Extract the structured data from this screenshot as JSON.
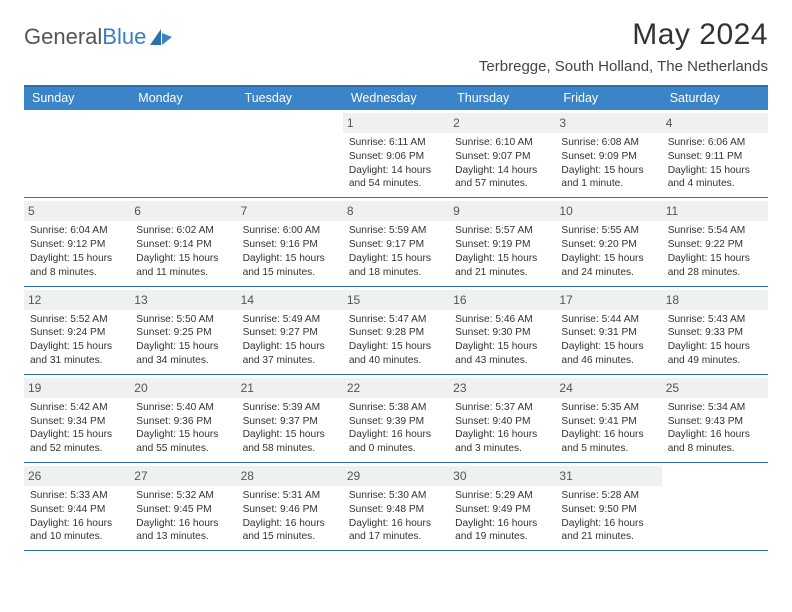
{
  "brand": {
    "part1": "General",
    "part2": "Blue"
  },
  "title": "May 2024",
  "location": "Terbregge, South Holland, The Netherlands",
  "colors": {
    "header_bg": "#3a84c7",
    "border": "#2e6fb0",
    "daynum_bg": "#eef0f1",
    "text": "#333333",
    "title": "#333333"
  },
  "daynames": [
    "Sunday",
    "Monday",
    "Tuesday",
    "Wednesday",
    "Thursday",
    "Friday",
    "Saturday"
  ],
  "weeks": [
    [
      null,
      null,
      null,
      {
        "n": "1",
        "sr": "Sunrise: 6:11 AM",
        "ss": "Sunset: 9:06 PM",
        "d1": "Daylight: 14 hours",
        "d2": "and 54 minutes."
      },
      {
        "n": "2",
        "sr": "Sunrise: 6:10 AM",
        "ss": "Sunset: 9:07 PM",
        "d1": "Daylight: 14 hours",
        "d2": "and 57 minutes."
      },
      {
        "n": "3",
        "sr": "Sunrise: 6:08 AM",
        "ss": "Sunset: 9:09 PM",
        "d1": "Daylight: 15 hours",
        "d2": "and 1 minute."
      },
      {
        "n": "4",
        "sr": "Sunrise: 6:06 AM",
        "ss": "Sunset: 9:11 PM",
        "d1": "Daylight: 15 hours",
        "d2": "and 4 minutes."
      }
    ],
    [
      {
        "n": "5",
        "sr": "Sunrise: 6:04 AM",
        "ss": "Sunset: 9:12 PM",
        "d1": "Daylight: 15 hours",
        "d2": "and 8 minutes."
      },
      {
        "n": "6",
        "sr": "Sunrise: 6:02 AM",
        "ss": "Sunset: 9:14 PM",
        "d1": "Daylight: 15 hours",
        "d2": "and 11 minutes."
      },
      {
        "n": "7",
        "sr": "Sunrise: 6:00 AM",
        "ss": "Sunset: 9:16 PM",
        "d1": "Daylight: 15 hours",
        "d2": "and 15 minutes."
      },
      {
        "n": "8",
        "sr": "Sunrise: 5:59 AM",
        "ss": "Sunset: 9:17 PM",
        "d1": "Daylight: 15 hours",
        "d2": "and 18 minutes."
      },
      {
        "n": "9",
        "sr": "Sunrise: 5:57 AM",
        "ss": "Sunset: 9:19 PM",
        "d1": "Daylight: 15 hours",
        "d2": "and 21 minutes."
      },
      {
        "n": "10",
        "sr": "Sunrise: 5:55 AM",
        "ss": "Sunset: 9:20 PM",
        "d1": "Daylight: 15 hours",
        "d2": "and 24 minutes."
      },
      {
        "n": "11",
        "sr": "Sunrise: 5:54 AM",
        "ss": "Sunset: 9:22 PM",
        "d1": "Daylight: 15 hours",
        "d2": "and 28 minutes."
      }
    ],
    [
      {
        "n": "12",
        "sr": "Sunrise: 5:52 AM",
        "ss": "Sunset: 9:24 PM",
        "d1": "Daylight: 15 hours",
        "d2": "and 31 minutes."
      },
      {
        "n": "13",
        "sr": "Sunrise: 5:50 AM",
        "ss": "Sunset: 9:25 PM",
        "d1": "Daylight: 15 hours",
        "d2": "and 34 minutes."
      },
      {
        "n": "14",
        "sr": "Sunrise: 5:49 AM",
        "ss": "Sunset: 9:27 PM",
        "d1": "Daylight: 15 hours",
        "d2": "and 37 minutes."
      },
      {
        "n": "15",
        "sr": "Sunrise: 5:47 AM",
        "ss": "Sunset: 9:28 PM",
        "d1": "Daylight: 15 hours",
        "d2": "and 40 minutes."
      },
      {
        "n": "16",
        "sr": "Sunrise: 5:46 AM",
        "ss": "Sunset: 9:30 PM",
        "d1": "Daylight: 15 hours",
        "d2": "and 43 minutes."
      },
      {
        "n": "17",
        "sr": "Sunrise: 5:44 AM",
        "ss": "Sunset: 9:31 PM",
        "d1": "Daylight: 15 hours",
        "d2": "and 46 minutes."
      },
      {
        "n": "18",
        "sr": "Sunrise: 5:43 AM",
        "ss": "Sunset: 9:33 PM",
        "d1": "Daylight: 15 hours",
        "d2": "and 49 minutes."
      }
    ],
    [
      {
        "n": "19",
        "sr": "Sunrise: 5:42 AM",
        "ss": "Sunset: 9:34 PM",
        "d1": "Daylight: 15 hours",
        "d2": "and 52 minutes."
      },
      {
        "n": "20",
        "sr": "Sunrise: 5:40 AM",
        "ss": "Sunset: 9:36 PM",
        "d1": "Daylight: 15 hours",
        "d2": "and 55 minutes."
      },
      {
        "n": "21",
        "sr": "Sunrise: 5:39 AM",
        "ss": "Sunset: 9:37 PM",
        "d1": "Daylight: 15 hours",
        "d2": "and 58 minutes."
      },
      {
        "n": "22",
        "sr": "Sunrise: 5:38 AM",
        "ss": "Sunset: 9:39 PM",
        "d1": "Daylight: 16 hours",
        "d2": "and 0 minutes."
      },
      {
        "n": "23",
        "sr": "Sunrise: 5:37 AM",
        "ss": "Sunset: 9:40 PM",
        "d1": "Daylight: 16 hours",
        "d2": "and 3 minutes."
      },
      {
        "n": "24",
        "sr": "Sunrise: 5:35 AM",
        "ss": "Sunset: 9:41 PM",
        "d1": "Daylight: 16 hours",
        "d2": "and 5 minutes."
      },
      {
        "n": "25",
        "sr": "Sunrise: 5:34 AM",
        "ss": "Sunset: 9:43 PM",
        "d1": "Daylight: 16 hours",
        "d2": "and 8 minutes."
      }
    ],
    [
      {
        "n": "26",
        "sr": "Sunrise: 5:33 AM",
        "ss": "Sunset: 9:44 PM",
        "d1": "Daylight: 16 hours",
        "d2": "and 10 minutes."
      },
      {
        "n": "27",
        "sr": "Sunrise: 5:32 AM",
        "ss": "Sunset: 9:45 PM",
        "d1": "Daylight: 16 hours",
        "d2": "and 13 minutes."
      },
      {
        "n": "28",
        "sr": "Sunrise: 5:31 AM",
        "ss": "Sunset: 9:46 PM",
        "d1": "Daylight: 16 hours",
        "d2": "and 15 minutes."
      },
      {
        "n": "29",
        "sr": "Sunrise: 5:30 AM",
        "ss": "Sunset: 9:48 PM",
        "d1": "Daylight: 16 hours",
        "d2": "and 17 minutes."
      },
      {
        "n": "30",
        "sr": "Sunrise: 5:29 AM",
        "ss": "Sunset: 9:49 PM",
        "d1": "Daylight: 16 hours",
        "d2": "and 19 minutes."
      },
      {
        "n": "31",
        "sr": "Sunrise: 5:28 AM",
        "ss": "Sunset: 9:50 PM",
        "d1": "Daylight: 16 hours",
        "d2": "and 21 minutes."
      },
      null
    ]
  ]
}
